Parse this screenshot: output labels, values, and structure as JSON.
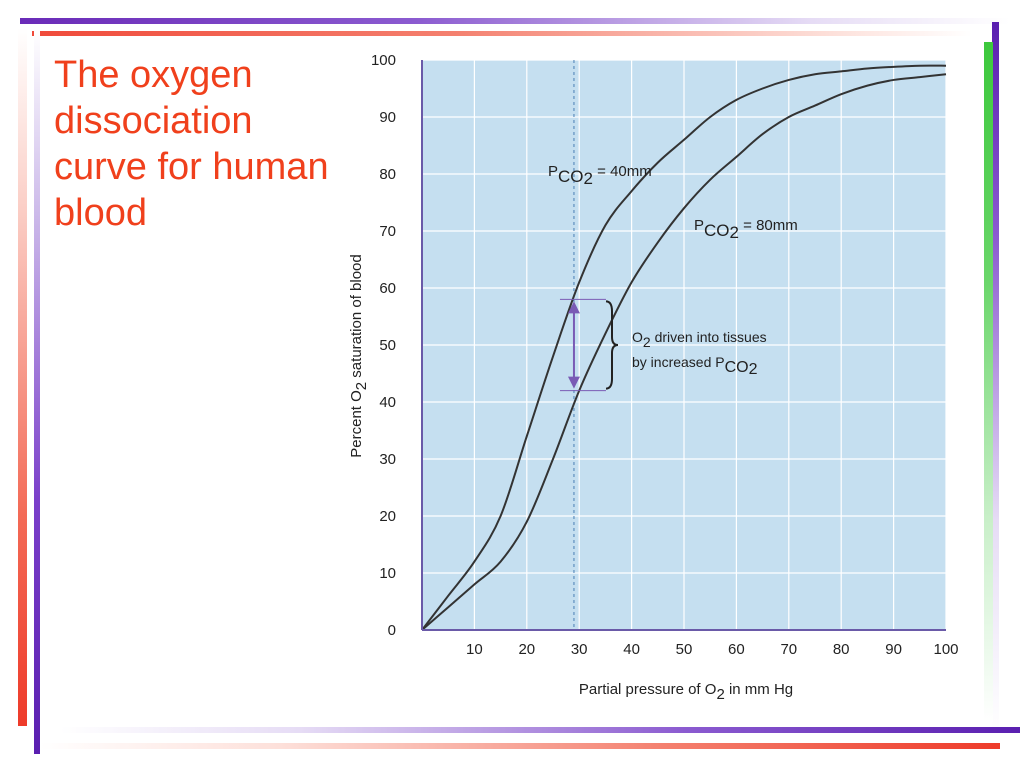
{
  "slide": {
    "title": "The oxygen dissociation curve for human blood"
  },
  "colors": {
    "title": "#f0401c",
    "plot_background": "#c5dff0",
    "grid": "#ffffff",
    "axis": "#6a5aa8",
    "curve": "#333333",
    "arrow": "#7a5bb5"
  },
  "chart_data": {
    "type": "line",
    "xlabel": {
      "base": "Partial pressure of O",
      "sub": "2",
      "suffix": " in mm Hg"
    },
    "ylabel": {
      "prefix": "Percent O",
      "sub": "2",
      "suffix": " saturation of blood"
    },
    "xlim": [
      0,
      100
    ],
    "ylim": [
      0,
      100
    ],
    "x_ticks": [
      10,
      20,
      30,
      40,
      50,
      60,
      70,
      80,
      90,
      100
    ],
    "y_ticks": [
      0,
      10,
      20,
      30,
      40,
      50,
      60,
      70,
      80,
      90,
      100
    ],
    "grid": true,
    "series": [
      {
        "label_text": {
          "p": "P",
          "sub": "CO",
          "sub2": "2",
          "rest": " = 40mm"
        },
        "x": [
          0,
          5,
          10,
          15,
          20,
          25,
          30,
          35,
          40,
          45,
          50,
          55,
          60,
          65,
          70,
          75,
          80,
          85,
          90,
          95,
          100
        ],
        "y": [
          0,
          6,
          12,
          20,
          34,
          48,
          61,
          71,
          77,
          82,
          86,
          90,
          93,
          95,
          96.5,
          97.5,
          98,
          98.5,
          98.8,
          99,
          99
        ]
      },
      {
        "label_text": {
          "p": "P",
          "sub": "CO",
          "sub2": "2",
          "rest": " = 80mm"
        },
        "x": [
          0,
          5,
          10,
          15,
          20,
          25,
          30,
          35,
          40,
          45,
          50,
          55,
          60,
          65,
          70,
          75,
          80,
          85,
          90,
          95,
          100
        ],
        "y": [
          0,
          4,
          8,
          12,
          19,
          30,
          42,
          52,
          61,
          68,
          74,
          79,
          83,
          87,
          90,
          92,
          94,
          95.5,
          96.5,
          97,
          97.5
        ]
      }
    ],
    "reference_line": {
      "x": 29
    },
    "annotation": {
      "x": 29,
      "y_top": 58,
      "y_bottom": 42,
      "line1": {
        "base": "O",
        "sub": "2",
        "rest": " driven into tissues"
      },
      "line2": {
        "base": "by increased P",
        "sub": "CO",
        "sub2": "2"
      }
    }
  }
}
